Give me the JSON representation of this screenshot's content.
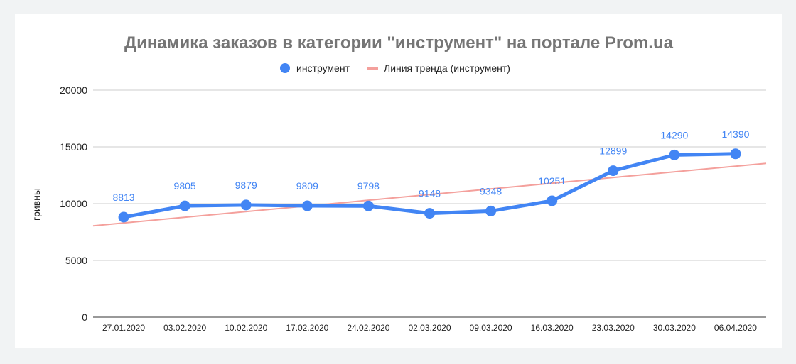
{
  "chart_data": {
    "type": "line",
    "title": "Динамика заказов в категории \"инструмент\" на портале Prom.ua",
    "ylabel": "гривны",
    "xlabel": "",
    "ylim": [
      0,
      20000
    ],
    "yticks": [
      "0",
      "5000",
      "10000",
      "15000",
      "20000"
    ],
    "categories": [
      "27.01.2020",
      "03.02.2020",
      "10.02.2020",
      "17.02.2020",
      "24.02.2020",
      "02.03.2020",
      "09.03.2020",
      "16.03.2020",
      "23.03.2020",
      "30.03.2020",
      "06.04.2020"
    ],
    "series": [
      {
        "name": "инструмент",
        "color": "#4285f4",
        "values": [
          8813,
          9805,
          9879,
          9809,
          9798,
          9148,
          9348,
          10251,
          12899,
          14290,
          14390
        ],
        "labels": [
          "8813",
          "9805",
          "9879",
          "9809",
          "9798",
          "9148",
          "9348",
          "10251",
          "12899",
          "14290",
          "14390"
        ]
      }
    ],
    "trendline": {
      "name": "Линия тренда (инструмент)",
      "color": "#f4a09c",
      "start_value": 8050,
      "end_value": 13550
    },
    "grid": true,
    "legend": "top"
  }
}
